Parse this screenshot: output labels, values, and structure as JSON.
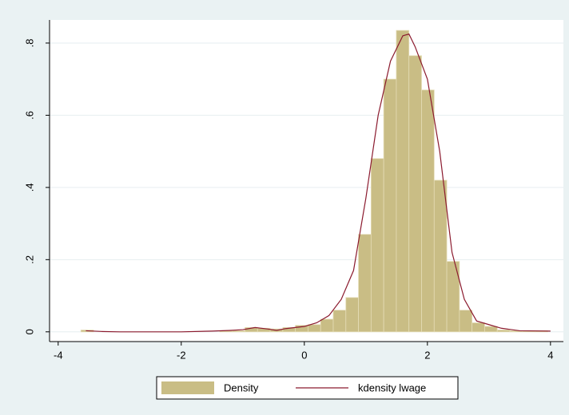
{
  "chart_data": {
    "type": "histogram",
    "xlim": [
      -4.14,
      4.21
    ],
    "ylim": [
      -0.027,
      0.864
    ],
    "xticks": [
      -4,
      -2,
      0,
      2,
      4
    ],
    "yticks": [
      0,
      {
        "value": 0.2,
        "label": ".2"
      },
      {
        "value": 0.4,
        "label": ".4"
      },
      {
        "value": 0.6,
        "label": ".6"
      },
      {
        "value": 0.8,
        "label": ".8"
      }
    ],
    "grid": true,
    "legend": "bottom",
    "series": [
      {
        "name": "Density",
        "type": "histogram",
        "color": "#c9bd85",
        "bins": [
          -3.63,
          -3.425,
          -3.22,
          -3.015,
          -2.81,
          -2.605,
          -2.4,
          -2.195,
          -1.99,
          -1.785,
          -1.58,
          -1.375,
          -1.17,
          -0.965,
          -0.76,
          -0.555,
          -0.35,
          -0.145,
          0.06,
          0.265,
          0.47,
          0.675,
          0.88,
          1.085,
          1.29,
          1.495,
          1.7,
          1.905,
          2.11,
          2.315,
          2.52,
          2.725,
          2.93,
          3.135,
          3.34,
          3.545,
          3.75,
          3.955
        ],
        "values": [
          0.005,
          0,
          0,
          0,
          0,
          0,
          0,
          0,
          0,
          0,
          0,
          0.003,
          0.003,
          0.012,
          0.01,
          0.008,
          0.012,
          0.018,
          0.02,
          0.035,
          0.06,
          0.095,
          0.27,
          0.48,
          0.7,
          0.835,
          0.765,
          0.67,
          0.42,
          0.195,
          0.06,
          0.025,
          0.015,
          0.005,
          0.003,
          0.003,
          0.003
        ]
      },
      {
        "name": "kdensity lwage",
        "type": "line",
        "color": "#8b1a2e",
        "x": [
          -3.55,
          -3.3,
          -3,
          -2,
          -1.5,
          -1.2,
          -1,
          -0.8,
          -0.6,
          -0.45,
          -0.3,
          0,
          0.2,
          0.4,
          0.6,
          0.8,
          1,
          1.2,
          1.4,
          1.6,
          1.7,
          1.8,
          2,
          2.2,
          2.4,
          2.6,
          2.8,
          3,
          3.2,
          3.5,
          4
        ],
        "values": [
          0.003,
          0.001,
          0,
          0,
          0.002,
          0.004,
          0.006,
          0.012,
          0.008,
          0.004,
          0.009,
          0.015,
          0.025,
          0.045,
          0.09,
          0.17,
          0.37,
          0.6,
          0.75,
          0.82,
          0.825,
          0.79,
          0.7,
          0.5,
          0.22,
          0.09,
          0.03,
          0.02,
          0.01,
          0.003,
          0.002
        ]
      }
    ]
  }
}
